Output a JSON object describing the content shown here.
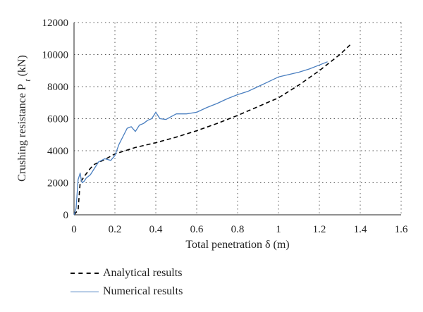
{
  "chart_data": {
    "type": "line",
    "title": "",
    "xlabel": "Total penetration δ (m)",
    "ylabel_main": "Crushing resistance P",
    "ylabel_sub": "t",
    "ylabel_unit": " (kN)",
    "xlim": [
      0,
      1.6
    ],
    "ylim": [
      0,
      12000
    ],
    "x_ticks": [
      "0",
      "0.2",
      "0.4",
      "0.6",
      "0.8",
      "1",
      "1.2",
      "1.4",
      "1.6"
    ],
    "y_ticks": [
      "0",
      "2000",
      "4000",
      "6000",
      "8000",
      "10000",
      "12000"
    ],
    "grid": "dotted",
    "legend_position": "bottom-left",
    "series": [
      {
        "name": "Analytical results",
        "color": "#000000",
        "style": "dashed",
        "x": [
          0,
          0.02,
          0.025,
          0.03,
          0.05,
          0.08,
          0.1,
          0.15,
          0.2,
          0.3,
          0.4,
          0.5,
          0.6,
          0.7,
          0.8,
          0.9,
          1.0,
          1.1,
          1.2,
          1.3,
          1.35
        ],
        "y": [
          0,
          300,
          1200,
          2000,
          2400,
          2900,
          3150,
          3450,
          3800,
          4200,
          4500,
          4850,
          5250,
          5700,
          6200,
          6750,
          7300,
          8100,
          9000,
          10000,
          10600
        ]
      },
      {
        "name": "Numerical results",
        "color": "#4a7fc0",
        "style": "solid",
        "x": [
          0,
          0.01,
          0.02,
          0.03,
          0.035,
          0.04,
          0.05,
          0.06,
          0.08,
          0.1,
          0.12,
          0.15,
          0.18,
          0.2,
          0.22,
          0.24,
          0.26,
          0.28,
          0.3,
          0.32,
          0.34,
          0.36,
          0.38,
          0.4,
          0.42,
          0.45,
          0.5,
          0.55,
          0.6,
          0.65,
          0.7,
          0.75,
          0.8,
          0.85,
          0.9,
          0.95,
          1.0,
          1.05,
          1.1,
          1.15,
          1.2,
          1.24
        ],
        "y": [
          0,
          400,
          2200,
          2600,
          2200,
          2000,
          2100,
          2300,
          2500,
          2900,
          3300,
          3500,
          3400,
          3700,
          4400,
          4900,
          5400,
          5500,
          5200,
          5600,
          5700,
          5900,
          6000,
          6400,
          6000,
          5950,
          6300,
          6300,
          6400,
          6700,
          6950,
          7250,
          7500,
          7700,
          8000,
          8300,
          8600,
          8750,
          8900,
          9100,
          9350,
          9550
        ]
      }
    ]
  }
}
